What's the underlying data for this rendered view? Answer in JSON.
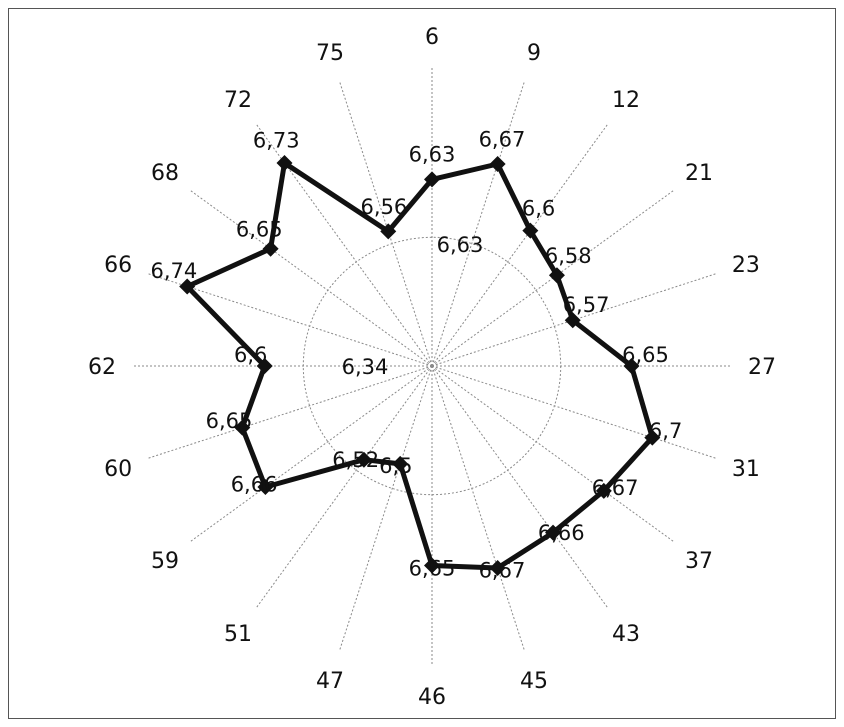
{
  "chart_data": {
    "type": "radar",
    "title": "",
    "categories": [
      "6",
      "9",
      "12",
      "21",
      "23",
      "27",
      "31",
      "37",
      "43",
      "45",
      "46",
      "47",
      "51",
      "59",
      "60",
      "62",
      "66",
      "68",
      "72",
      "75"
    ],
    "series": [
      {
        "values": [
          6.63,
          6.67,
          6.6,
          6.58,
          6.57,
          6.65,
          6.7,
          6.67,
          6.66,
          6.67,
          6.65,
          6.5,
          6.52,
          6.66,
          6.65,
          6.6,
          6.74,
          6.65,
          6.73,
          6.56
        ],
        "value_labels": [
          "6,63",
          "6,67",
          "6,6",
          "6,58",
          "6,57",
          "6,65",
          "6,7",
          "6,67",
          "6,66",
          "6,67",
          "6,65",
          "6,5",
          "6,52",
          "6,66",
          "6,65",
          "6,6",
          "6,74",
          "6,65",
          "6,73",
          "6,56"
        ]
      }
    ],
    "extra_labels": [
      {
        "text": "6,63"
      },
      {
        "text": "6,34"
      }
    ],
    "range": [
      6.34,
      6.74
    ],
    "grid": true,
    "legend": "none",
    "colors": {
      "line": "#111111",
      "grid": "#8a8a8a"
    }
  }
}
